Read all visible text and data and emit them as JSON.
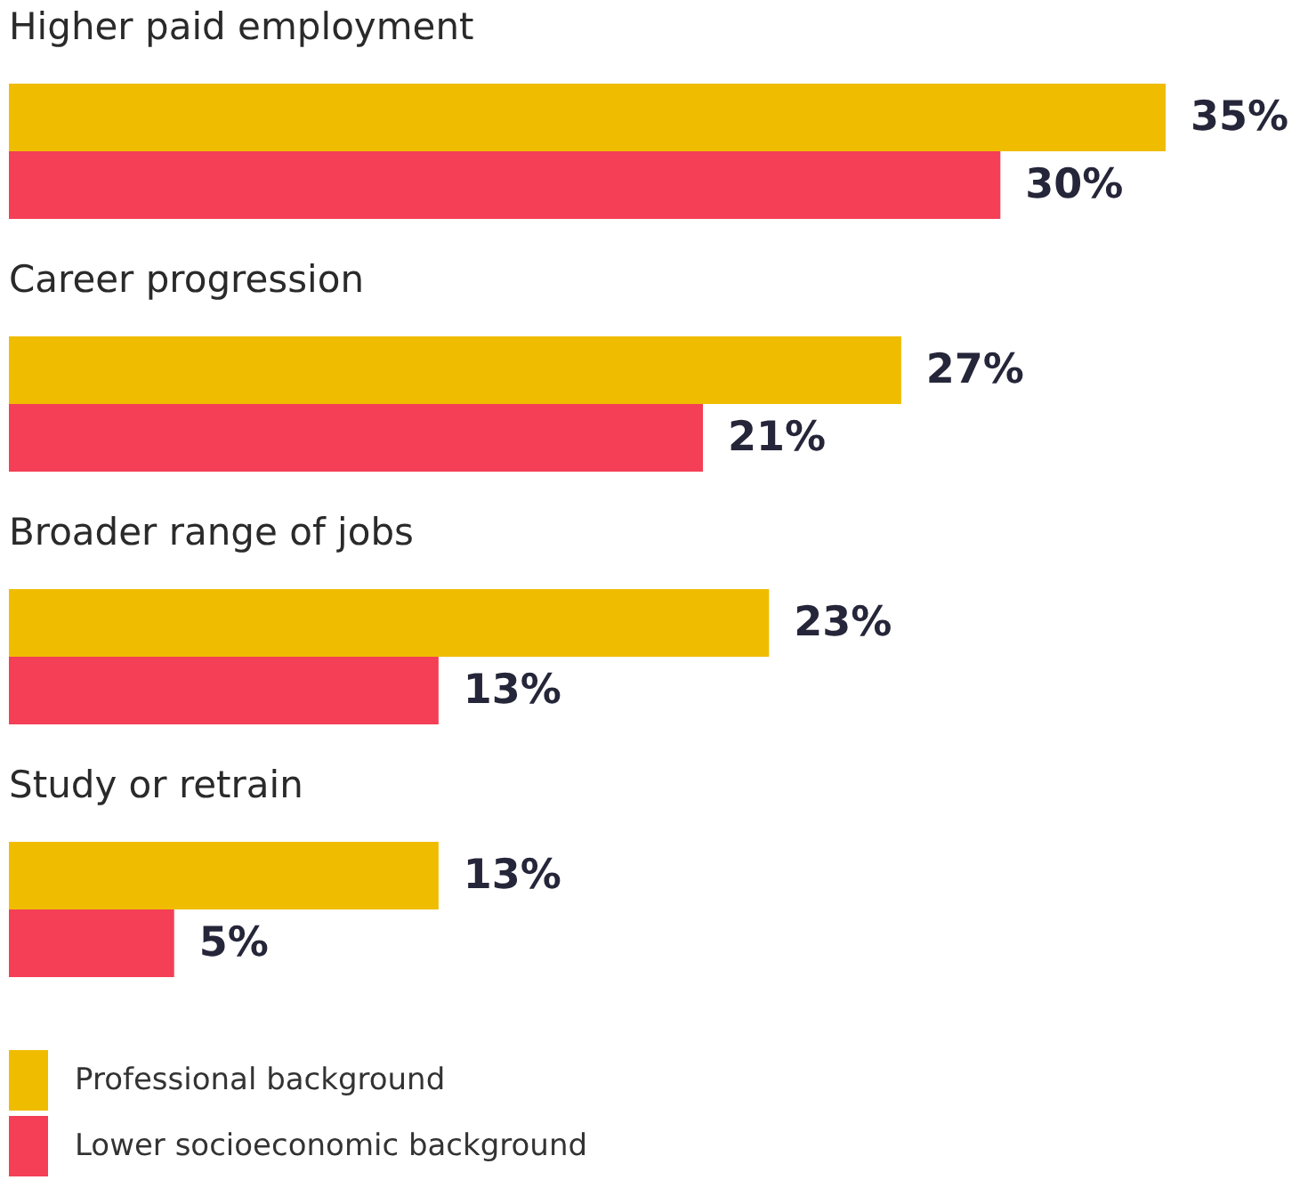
{
  "chart_data": {
    "type": "bar",
    "orientation": "horizontal",
    "categories": [
      "Higher paid employment",
      "Career progression",
      "Broader range of jobs",
      "Study or retrain"
    ],
    "series": [
      {
        "name": "Professional background",
        "color": "#f0bc00",
        "values": [
          35,
          27,
          23,
          13
        ],
        "value_labels": [
          "35%",
          "27%",
          "23%",
          "13%"
        ]
      },
      {
        "name": "Lower socioeconomic background",
        "color": "#f43f56",
        "values": [
          30,
          21,
          13,
          5
        ],
        "value_labels": [
          "30%",
          "21%",
          "13%",
          "5%"
        ]
      }
    ],
    "legend": "bottom left"
  }
}
